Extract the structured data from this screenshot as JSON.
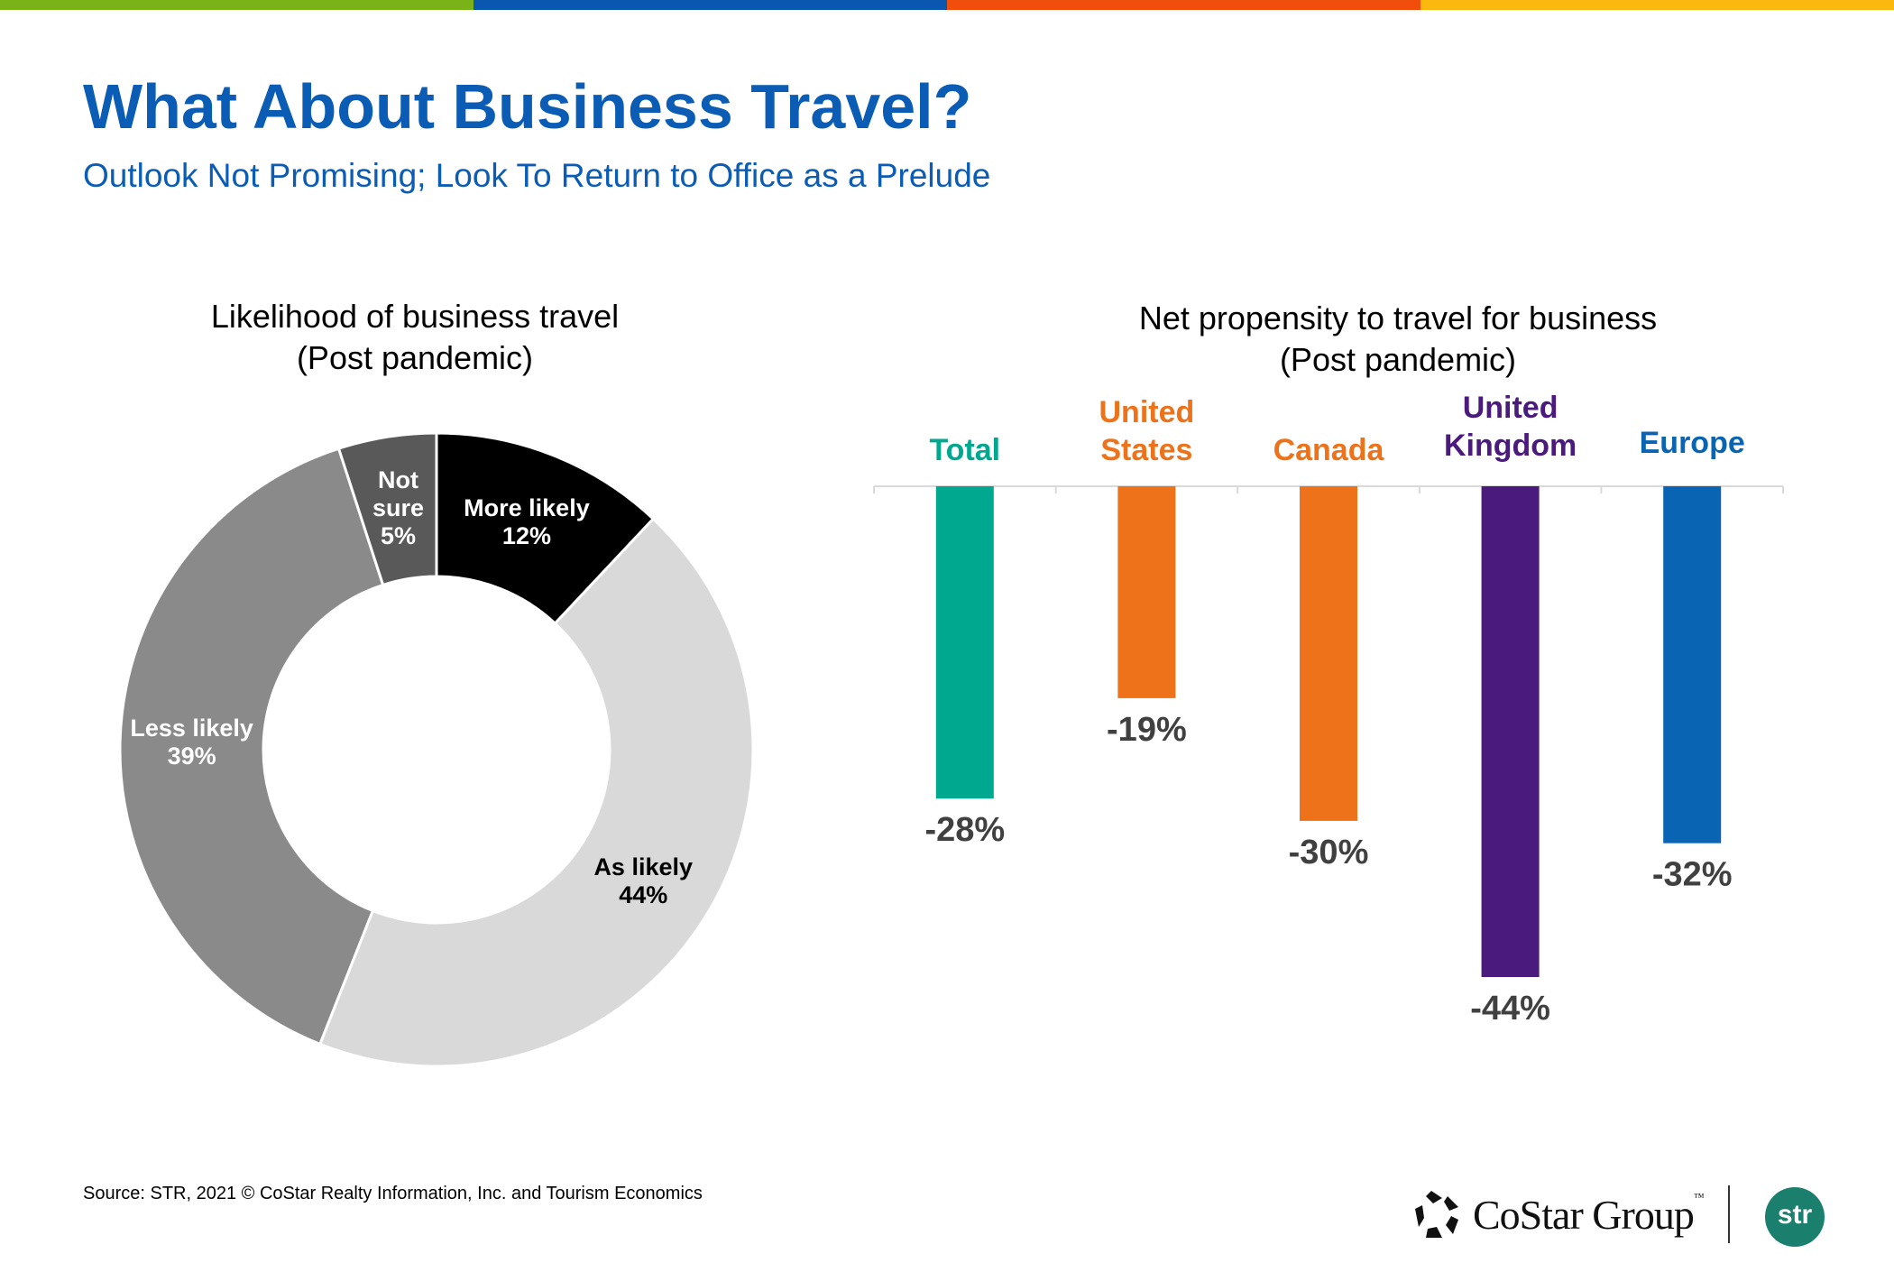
{
  "header": {
    "title": "What About Business Travel?",
    "subtitle": "Outlook Not Promising; Look To Return to Office as a Prelude"
  },
  "top_bar_colors": [
    "#7ab317",
    "#0a57b0",
    "#f04e0a",
    "#fbb80f"
  ],
  "chart_data": [
    {
      "type": "pie",
      "variant": "donut",
      "title": [
        "Likelihood of business travel",
        "(Post pandemic)"
      ],
      "slices": [
        {
          "label": "More likely",
          "value": 12,
          "display": "12%",
          "color": "#000000",
          "text_color": "#ffffff"
        },
        {
          "label": "As likely",
          "value": 44,
          "display": "44%",
          "color": "#d9d9d9",
          "text_color": "#000000"
        },
        {
          "label": "Less likely",
          "value": 39,
          "display": "39%",
          "color": "#8a8a8a",
          "text_color": "#ffffff"
        },
        {
          "label": "Not sure",
          "value": 5,
          "display": "5%",
          "color": "#595959",
          "text_color": "#ffffff"
        }
      ]
    },
    {
      "type": "bar",
      "title": [
        "Net propensity to travel for business",
        "(Post pandemic)"
      ],
      "categories": [
        [
          "Total"
        ],
        [
          "United",
          "States"
        ],
        [
          "Canada"
        ],
        [
          "United",
          "Kingdom"
        ],
        [
          "Europe"
        ]
      ],
      "values": [
        -28,
        -19,
        -30,
        -44,
        -32
      ],
      "labels": [
        "-28%",
        "-19%",
        "-30%",
        "-44%",
        "-32%"
      ],
      "colors": [
        "#00a88f",
        "#ee7219",
        "#ee7219",
        "#4b1a7d",
        "#0a64b4"
      ],
      "ylim": [
        -44,
        0
      ],
      "grid": false
    }
  ],
  "footer": {
    "source": "Source: STR, 2021 © CoStar Realty Information, Inc. and Tourism Economics",
    "logo_costar": "CoStar Group",
    "logo_tm": "™",
    "logo_str": "str"
  }
}
